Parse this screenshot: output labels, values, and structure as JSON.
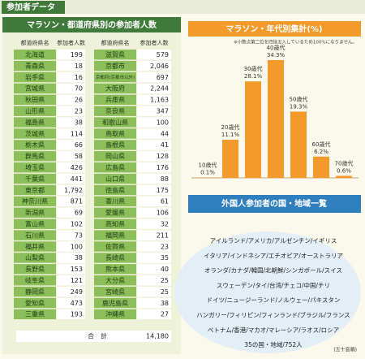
{
  "header": {
    "title": "参加者データ"
  },
  "table": {
    "title": "マラソン・都道府県別の参加者人数",
    "column_headers": [
      "都道府県名",
      "参加者人数"
    ],
    "left_rows": [
      [
        "北海道",
        "199"
      ],
      [
        "青森県",
        "18"
      ],
      [
        "岩手県",
        "16"
      ],
      [
        "宮城県",
        "70"
      ],
      [
        "秋田県",
        "26"
      ],
      [
        "山形県",
        "23"
      ],
      [
        "福島県",
        "38"
      ],
      [
        "茨城県",
        "114"
      ],
      [
        "栃木県",
        "66"
      ],
      [
        "群馬県",
        "58"
      ],
      [
        "埼玉県",
        "426"
      ],
      [
        "千葉県",
        "441"
      ],
      [
        "東京都",
        "1,792"
      ],
      [
        "神奈川県",
        "871"
      ],
      [
        "新潟県",
        "69"
      ],
      [
        "富山県",
        "102"
      ],
      [
        "石川県",
        "73"
      ],
      [
        "福井県",
        "100"
      ],
      [
        "山梨県",
        "38"
      ],
      [
        "長野県",
        "153"
      ],
      [
        "岐阜県",
        "121"
      ],
      [
        "静岡県",
        "249"
      ],
      [
        "愛知県",
        "473"
      ],
      [
        "三重県",
        "193"
      ]
    ],
    "right_rows": [
      [
        "滋賀県",
        "579"
      ],
      [
        "京都市",
        "2,046"
      ],
      [
        "京都府(京都市以外)",
        "697"
      ],
      [
        "大阪府",
        "2,244"
      ],
      [
        "兵庫県",
        "1,163"
      ],
      [
        "奈良県",
        "347"
      ],
      [
        "和歌山県",
        "100"
      ],
      [
        "鳥取県",
        "44"
      ],
      [
        "島根県",
        "41"
      ],
      [
        "岡山県",
        "128"
      ],
      [
        "広島県",
        "176"
      ],
      [
        "山口県",
        "88"
      ],
      [
        "徳島県",
        "175"
      ],
      [
        "香川県",
        "61"
      ],
      [
        "愛媛県",
        "106"
      ],
      [
        "高知県",
        "32"
      ],
      [
        "福岡県",
        "211"
      ],
      [
        "佐賀県",
        "23"
      ],
      [
        "長崎県",
        "35"
      ],
      [
        "熊本県",
        "40"
      ],
      [
        "大分県",
        "25"
      ],
      [
        "宮崎県",
        "25"
      ],
      [
        "鹿児島県",
        "38"
      ],
      [
        "沖縄県",
        "27"
      ]
    ],
    "total_label": "合　計",
    "total_value": "14,180"
  },
  "chart_data": {
    "type": "bar",
    "title": "マラソン・年代別集計(%)",
    "note": "※小数点第二位を四捨五入しているため100%になりません。",
    "categories": [
      "10歳代",
      "20歳代",
      "30歳代",
      "40歳代",
      "50歳代",
      "60歳代",
      "70歳代"
    ],
    "values": [
      0.1,
      11.1,
      28.1,
      34.3,
      19.3,
      6.2,
      0.6
    ],
    "value_labels": [
      "0.1%",
      "11.1%",
      "28.1%",
      "34.3%",
      "19.3%",
      "6.2%",
      "0.6%"
    ],
    "color": "#f39a2b"
  },
  "countries": {
    "title": "外国人参加者の国・地域一覧",
    "lines": [
      "アイルランド/アメリカ/アルゼンチン/イギリス",
      "イタリア/インドネシア/エチオピア/オーストラリア",
      "オランダ/カナダ/韓国/北朝鮮/シンガポール/スイス",
      "スウェーデン/タイ/台湾/チェコ/中国/チリ",
      "ドイツ/ニュージーランド/ノルウェー/パキスタン",
      "ハンガリー/フィリピン/フィンランド/ブラジル/フランス",
      "ベトナム/香港/マカオ/マレーシア/ラオス/ロシア",
      "35の国・地域/752人"
    ],
    "order_note": "(五十音順)"
  }
}
